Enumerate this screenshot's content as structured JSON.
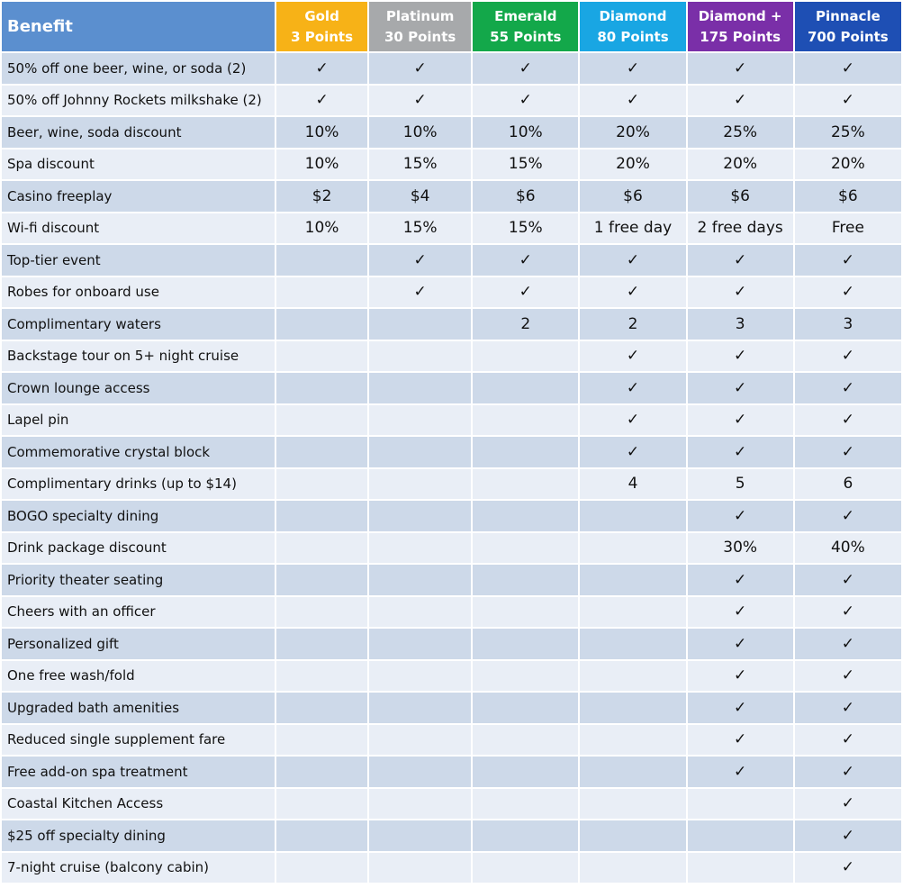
{
  "table": {
    "benefit_header": "Benefit",
    "tiers": [
      {
        "name": "Gold",
        "points": "3 Points",
        "color": "#f7b217"
      },
      {
        "name": "Platinum",
        "points": "30 Points",
        "color": "#a7a9ab"
      },
      {
        "name": "Emerald",
        "points": "55 Points",
        "color": "#13a84a"
      },
      {
        "name": "Diamond",
        "points": "80 Points",
        "color": "#19a6e3"
      },
      {
        "name": "Diamond +",
        "points": "175 Points",
        "color": "#7a2fa8"
      },
      {
        "name": "Pinnacle",
        "points": "700 Points",
        "color": "#1e4fb4"
      }
    ],
    "header_bg": "#5b8fcf",
    "rows": [
      {
        "benefit": "50% off one beer, wine, or soda (2)",
        "cells": [
          "✓",
          "✓",
          "✓",
          "✓",
          "✓",
          "✓"
        ]
      },
      {
        "benefit": "50% off Johnny Rockets milkshake (2)",
        "cells": [
          "✓",
          "✓",
          "✓",
          "✓",
          "✓",
          "✓"
        ]
      },
      {
        "benefit": "Beer, wine, soda discount",
        "cells": [
          "10%",
          "10%",
          "10%",
          "20%",
          "25%",
          "25%"
        ]
      },
      {
        "benefit": "Spa discount",
        "cells": [
          "10%",
          "15%",
          "15%",
          "20%",
          "20%",
          "20%"
        ]
      },
      {
        "benefit": "Casino freeplay",
        "cells": [
          "$2",
          "$4",
          "$6",
          "$6",
          "$6",
          "$6"
        ]
      },
      {
        "benefit": "Wi-fi discount",
        "cells": [
          "10%",
          "15%",
          "15%",
          "1 free day",
          "2 free days",
          "Free"
        ]
      },
      {
        "benefit": "Top-tier event",
        "cells": [
          "",
          "✓",
          "✓",
          "✓",
          "✓",
          "✓"
        ]
      },
      {
        "benefit": "Robes for onboard use",
        "cells": [
          "",
          "✓",
          "✓",
          "✓",
          "✓",
          "✓"
        ]
      },
      {
        "benefit": "Complimentary waters",
        "cells": [
          "",
          "",
          "2",
          "2",
          "3",
          "3"
        ]
      },
      {
        "benefit": "Backstage tour on 5+ night cruise",
        "cells": [
          "",
          "",
          "",
          "✓",
          "✓",
          "✓"
        ]
      },
      {
        "benefit": "Crown lounge access",
        "cells": [
          "",
          "",
          "",
          "✓",
          "✓",
          "✓"
        ]
      },
      {
        "benefit": "Lapel pin",
        "cells": [
          "",
          "",
          "",
          "✓",
          "✓",
          "✓"
        ]
      },
      {
        "benefit": "Commemorative crystal block",
        "cells": [
          "",
          "",
          "",
          "✓",
          "✓",
          "✓"
        ]
      },
      {
        "benefit": "Complimentary drinks (up to $14)",
        "cells": [
          "",
          "",
          "",
          "4",
          "5",
          "6"
        ]
      },
      {
        "benefit": "BOGO specialty dining",
        "cells": [
          "",
          "",
          "",
          "",
          "✓",
          "✓"
        ]
      },
      {
        "benefit": "Drink package discount",
        "cells": [
          "",
          "",
          "",
          "",
          "30%",
          "40%"
        ]
      },
      {
        "benefit": "Priority theater seating",
        "cells": [
          "",
          "",
          "",
          "",
          "✓",
          "✓"
        ]
      },
      {
        "benefit": "Cheers with an officer",
        "cells": [
          "",
          "",
          "",
          "",
          "✓",
          "✓"
        ]
      },
      {
        "benefit": "Personalized gift",
        "cells": [
          "",
          "",
          "",
          "",
          "✓",
          "✓"
        ]
      },
      {
        "benefit": "One free wash/fold",
        "cells": [
          "",
          "",
          "",
          "",
          "✓",
          "✓"
        ]
      },
      {
        "benefit": "Upgraded bath amenities",
        "cells": [
          "",
          "",
          "",
          "",
          "✓",
          "✓"
        ]
      },
      {
        "benefit": "Reduced single supplement fare",
        "cells": [
          "",
          "",
          "",
          "",
          "✓",
          "✓"
        ]
      },
      {
        "benefit": "Free add-on spa treatment",
        "cells": [
          "",
          "",
          "",
          "",
          "✓",
          "✓"
        ]
      },
      {
        "benefit": "Coastal Kitchen Access",
        "cells": [
          "",
          "",
          "",
          "",
          "",
          "✓"
        ]
      },
      {
        "benefit": "$25 off specialty dining",
        "cells": [
          "",
          "",
          "",
          "",
          "",
          "✓"
        ]
      },
      {
        "benefit": "7-night cruise (balcony cabin)",
        "cells": [
          "",
          "",
          "",
          "",
          "",
          "✓"
        ]
      }
    ]
  }
}
